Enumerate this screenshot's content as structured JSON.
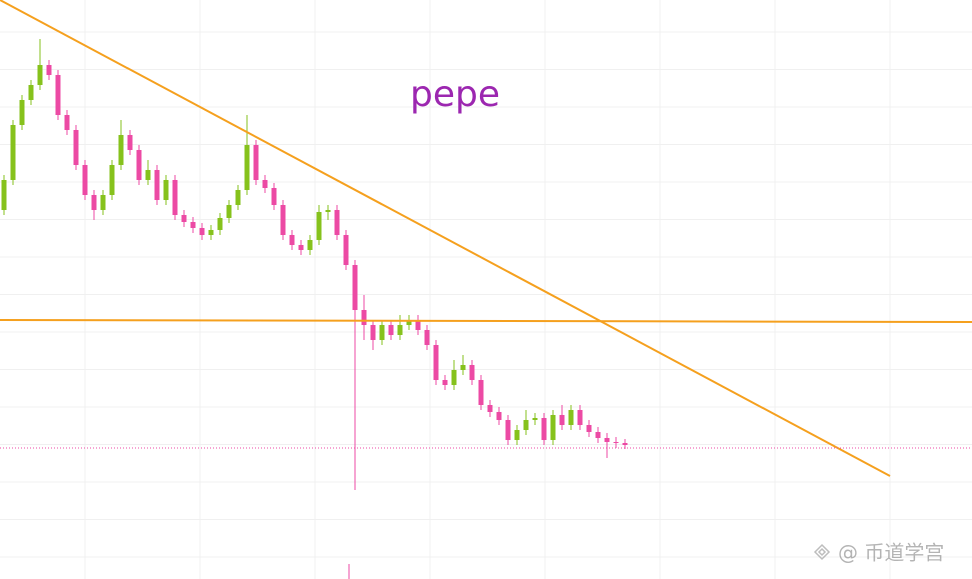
{
  "chart_data": {
    "type": "candlestick",
    "title": "pepe",
    "watermark": "@ 币道学宫",
    "open": [
      369,
      399,
      454,
      479,
      494,
      514,
      504,
      464,
      449,
      414,
      384,
      369,
      384,
      414,
      444,
      429,
      399,
      409,
      379,
      399,
      364,
      357,
      351,
      344,
      349,
      361,
      374,
      389,
      434,
      399,
      391,
      374,
      344,
      334,
      329,
      339,
      367,
      369,
      344,
      314,
      269,
      254,
      239,
      254,
      244,
      254,
      259,
      249,
      234,
      199,
      194,
      209,
      214,
      199,
      174,
      167,
      159,
      139,
      149,
      159,
      161,
      139,
      164,
      154,
      169,
      154,
      147,
      141,
      137,
      136
    ],
    "high": [
      404,
      459,
      484,
      499,
      540,
      519,
      509,
      469,
      454,
      419,
      389,
      389,
      419,
      459,
      449,
      434,
      419,
      414,
      404,
      404,
      369,
      362,
      356,
      354,
      366,
      379,
      394,
      464,
      439,
      404,
      396,
      379,
      349,
      339,
      344,
      374,
      374,
      374,
      349,
      319,
      284,
      259,
      259,
      259,
      264,
      264,
      264,
      254,
      239,
      204,
      219,
      224,
      219,
      204,
      179,
      172,
      164,
      154,
      169,
      166,
      166,
      169,
      174,
      174,
      174,
      159,
      152,
      146,
      142,
      140
    ],
    "low": [
      364,
      394,
      449,
      474,
      489,
      499,
      459,
      444,
      409,
      379,
      359,
      364,
      379,
      409,
      424,
      394,
      394,
      374,
      374,
      359,
      352,
      346,
      339,
      339,
      344,
      356,
      369,
      384,
      394,
      386,
      369,
      339,
      329,
      324,
      324,
      334,
      359,
      339,
      309,
      89,
      239,
      229,
      234,
      239,
      239,
      249,
      244,
      229,
      194,
      189,
      189,
      204,
      194,
      169,
      162,
      154,
      134,
      134,
      144,
      154,
      134,
      134,
      149,
      149,
      149,
      142,
      136,
      121,
      131,
      130
    ],
    "close": [
      399,
      454,
      479,
      494,
      514,
      504,
      464,
      449,
      414,
      384,
      369,
      384,
      414,
      444,
      429,
      399,
      409,
      379,
      399,
      364,
      357,
      351,
      344,
      349,
      361,
      374,
      389,
      434,
      399,
      391,
      374,
      344,
      334,
      329,
      339,
      367,
      369,
      344,
      314,
      269,
      254,
      239,
      254,
      244,
      254,
      259,
      249,
      234,
      199,
      194,
      209,
      214,
      199,
      174,
      167,
      159,
      139,
      149,
      159,
      161,
      139,
      164,
      154,
      169,
      154,
      147,
      141,
      137,
      136,
      134
    ],
    "ylim": [
      0,
      579
    ],
    "up_color": "#86c21c",
    "down_color": "#ec4aa4",
    "grid": true
  }
}
